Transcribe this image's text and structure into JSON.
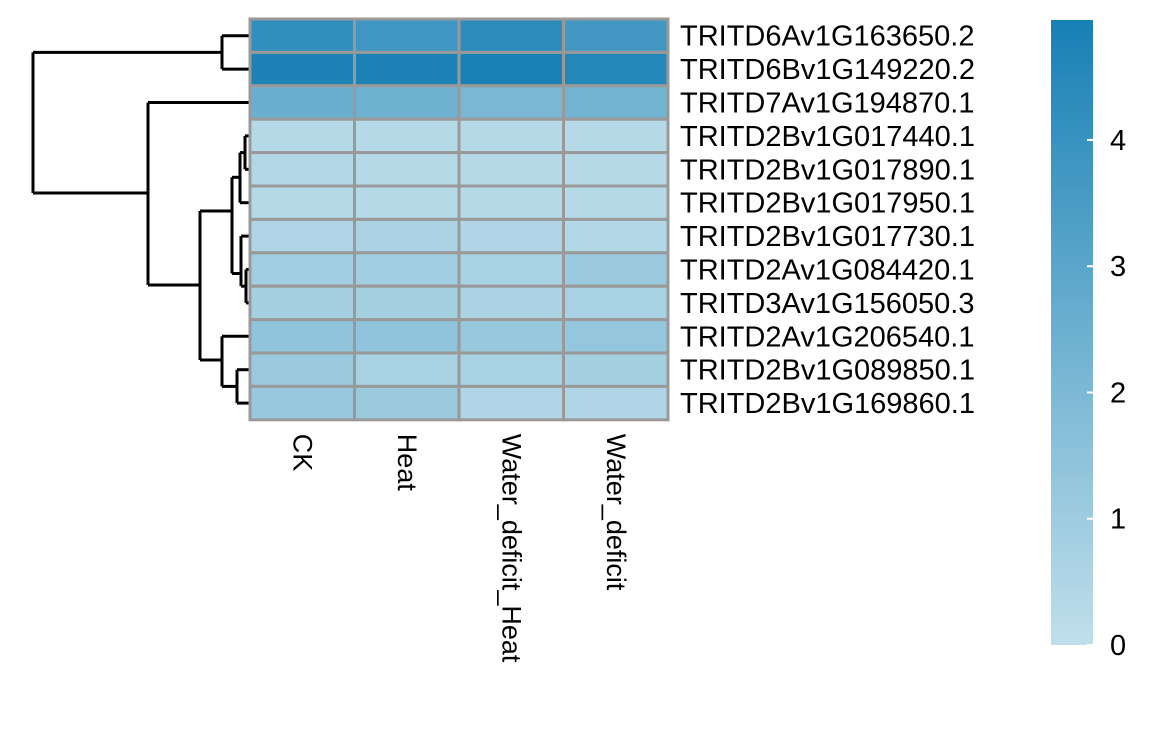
{
  "chart_data": {
    "type": "heatmap",
    "title": "",
    "columns": [
      "CK",
      "Heat",
      "Water_deficit_Heat",
      "Water_deficit"
    ],
    "rows": [
      "TRITD6Av1G163650.2",
      "TRITD6Bv1G149220.2",
      "TRITD7Av1G194870.1",
      "TRITD2Bv1G017440.1",
      "TRITD2Bv1G017890.1",
      "TRITD2Bv1G017950.1",
      "TRITD2Bv1G017730.1",
      "TRITD2Av1G084420.1",
      "TRITD3Av1G156050.3",
      "TRITD2Av1G206540.1",
      "TRITD2Bv1G089850.1",
      "TRITD2Bv1G169860.1"
    ],
    "values": [
      [
        4.2,
        3.8,
        4.3,
        3.7
      ],
      [
        4.8,
        4.8,
        4.9,
        4.6
      ],
      [
        2.5,
        2.4,
        2.1,
        2.3
      ],
      [
        0.3,
        0.3,
        0.3,
        0.3
      ],
      [
        0.4,
        0.3,
        0.3,
        0.3
      ],
      [
        0.3,
        0.3,
        0.3,
        0.3
      ],
      [
        0.5,
        0.6,
        0.5,
        0.4
      ],
      [
        0.9,
        0.9,
        0.7,
        1.1
      ],
      [
        0.8,
        0.8,
        0.6,
        0.7
      ],
      [
        1.4,
        1.4,
        1.2,
        1.3
      ],
      [
        1.1,
        0.7,
        0.7,
        0.8
      ],
      [
        1.2,
        1.1,
        0.5,
        0.5
      ]
    ],
    "colorbar": {
      "ticks": [
        0,
        1,
        2,
        3,
        4
      ],
      "range": [
        0,
        4.95
      ],
      "low_color": "#c0dfeb",
      "high_color": "#1880b5"
    },
    "row_dendrogram": true,
    "legend_position": "right"
  }
}
